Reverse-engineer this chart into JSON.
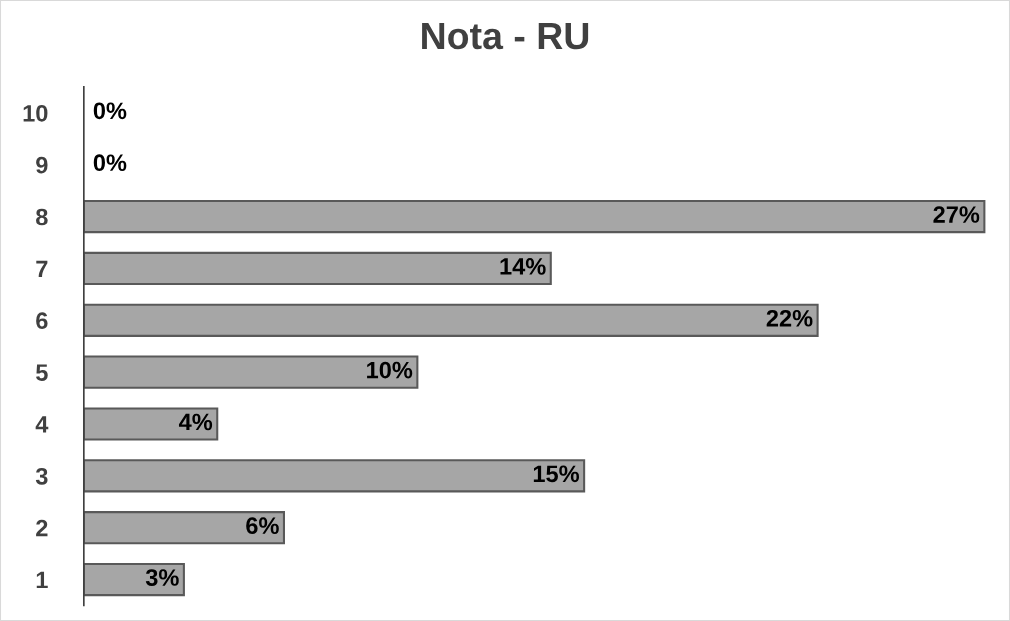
{
  "chart_data": {
    "type": "bar",
    "title": "Nota - RU",
    "orientation": "horizontal",
    "categories": [
      "10",
      "9",
      "8",
      "7",
      "6",
      "5",
      "4",
      "3",
      "2",
      "1"
    ],
    "values": [
      0,
      0,
      27,
      14,
      22,
      10,
      4,
      15,
      6,
      3
    ],
    "value_labels": [
      "0%",
      "0%",
      "27%",
      "14%",
      "22%",
      "10%",
      "4%",
      "15%",
      "6%",
      "3%"
    ],
    "color": "#a6a6a6",
    "tick_labels": "y",
    "grid": false,
    "legend": false
  }
}
